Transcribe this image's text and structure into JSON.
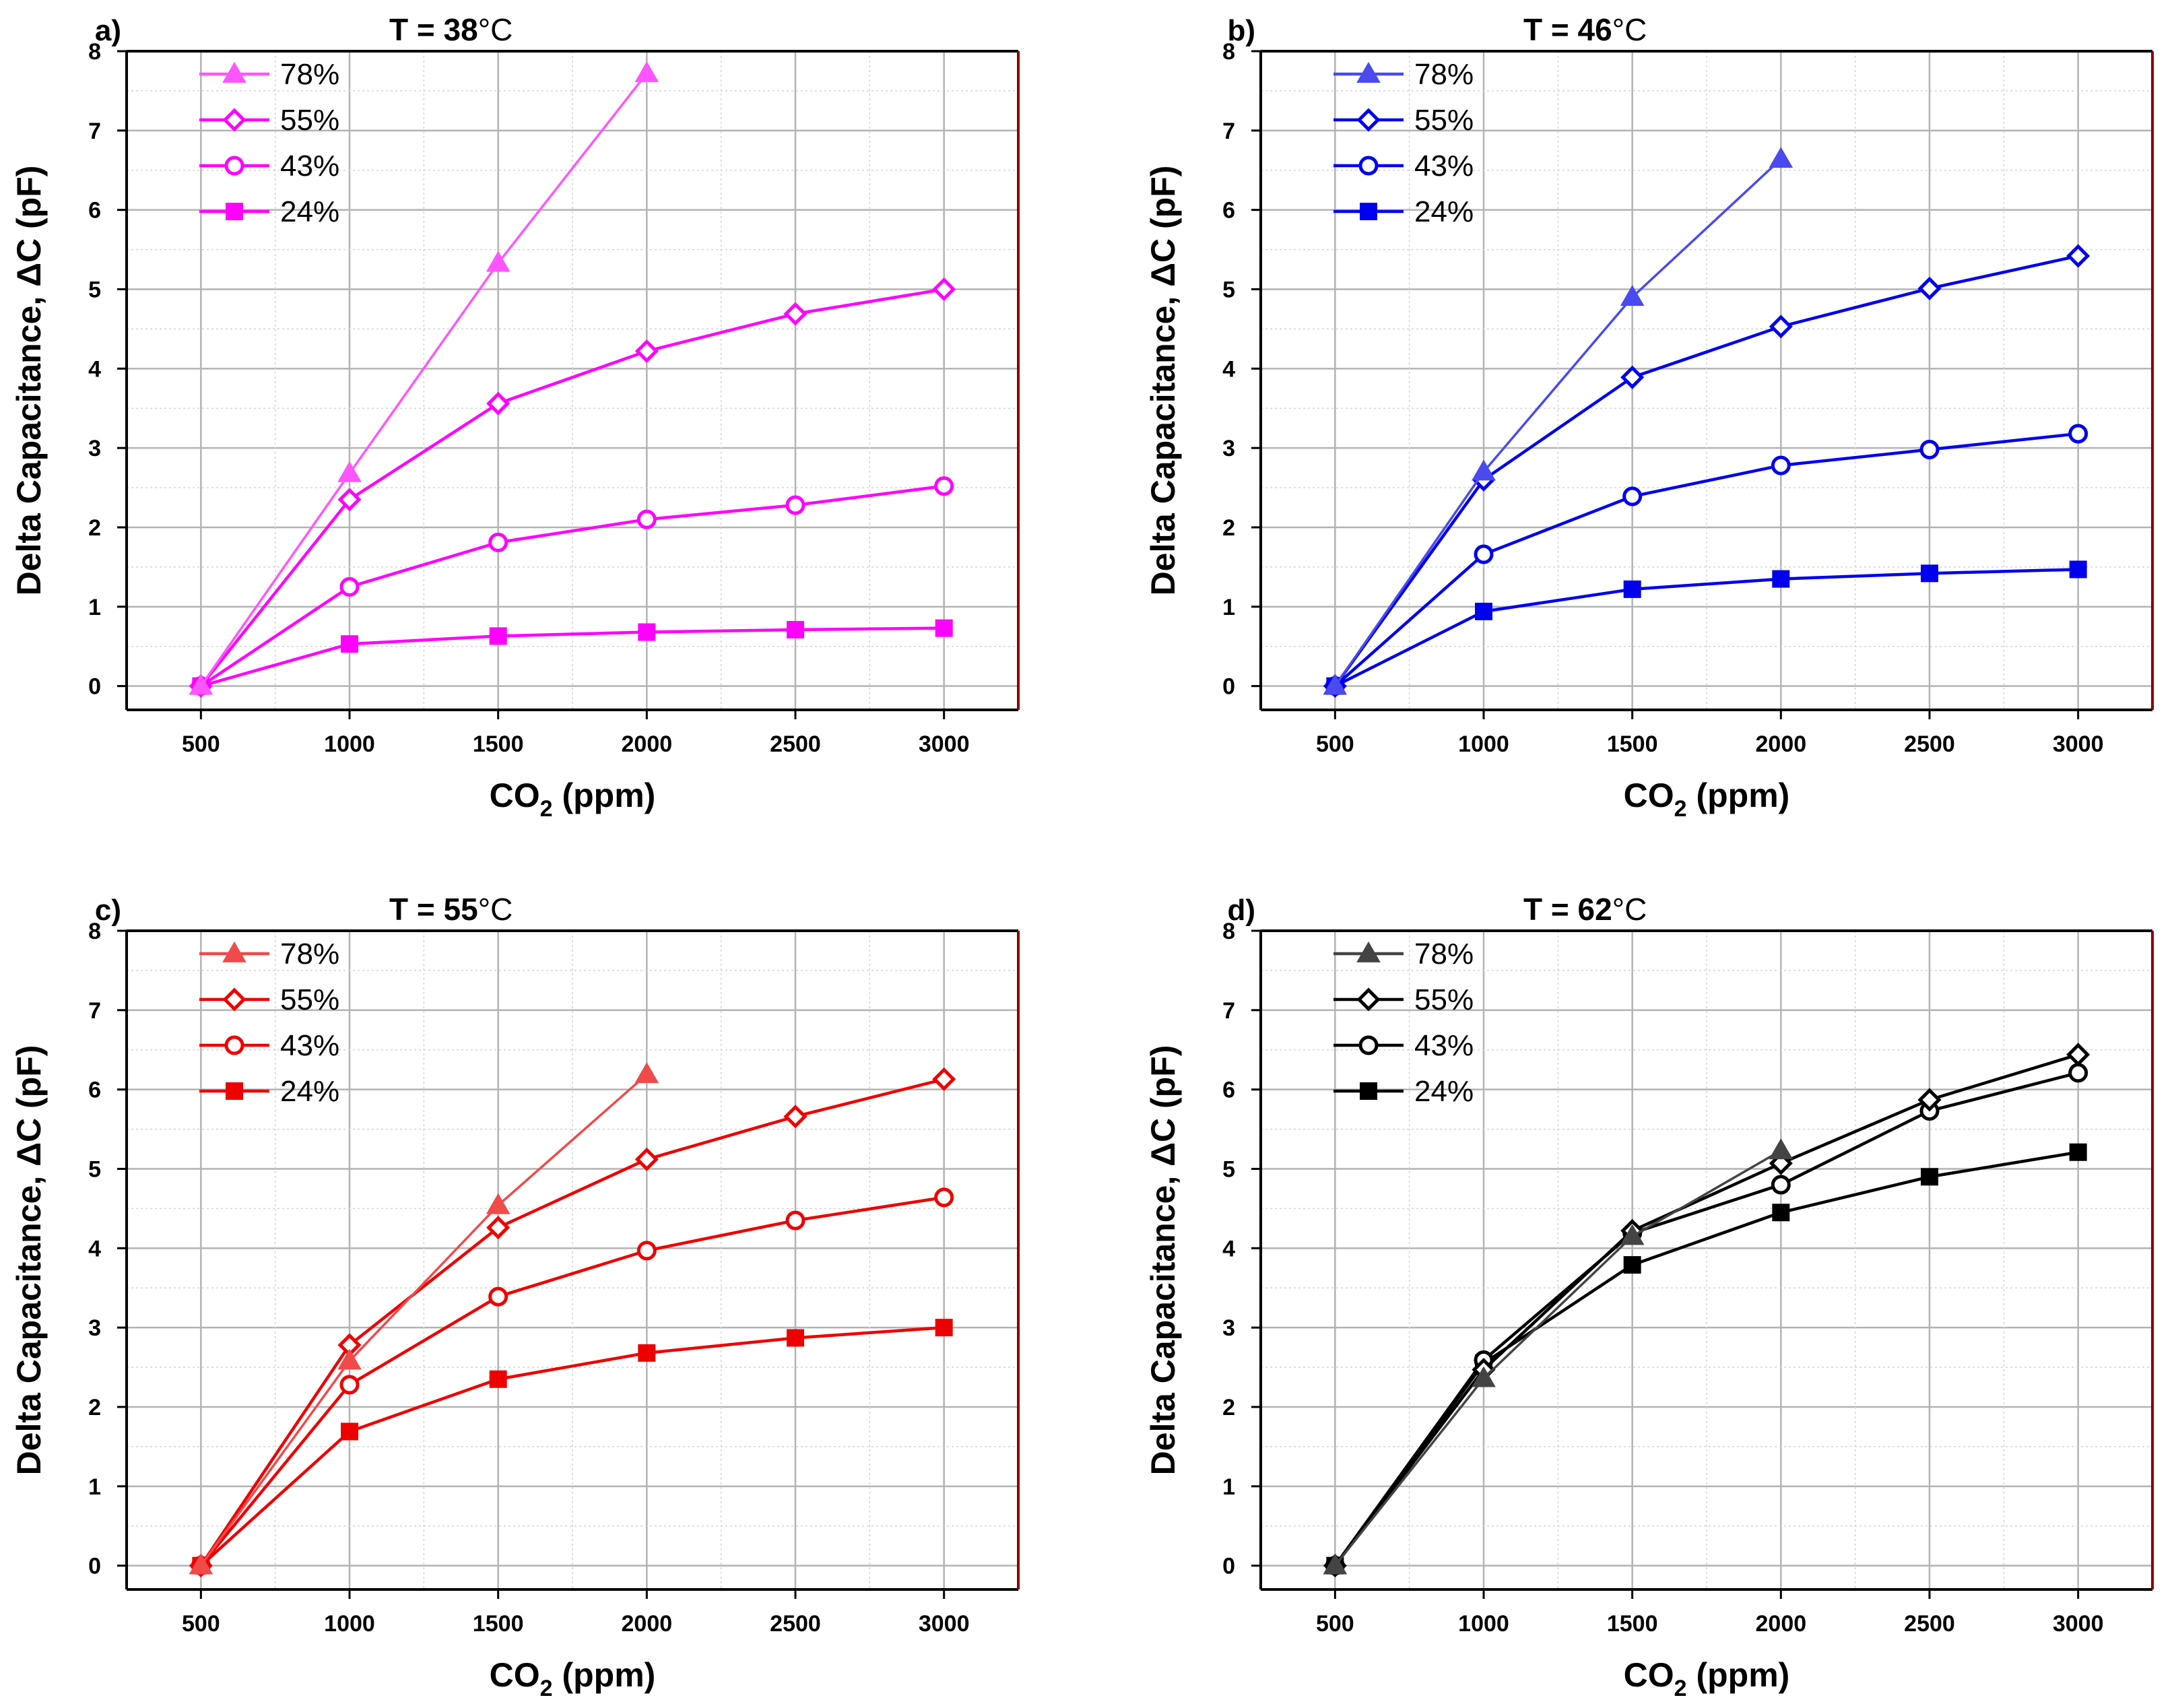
{
  "chart_data": [
    {
      "type": "line",
      "panel_label": "a)",
      "title_prefix": "T = ",
      "title_value": "38",
      "title_unit": "°C",
      "xlabel_main": "CO",
      "xlabel_sub": "2",
      "xlabel_unit": " (ppm)",
      "ylabel": "Delta Capacitance, ΔC (pF)",
      "xlim": [
        250,
        3250
      ],
      "ylim": [
        -0.3,
        8
      ],
      "xticks": [
        500,
        1000,
        1500,
        2000,
        2500,
        3000
      ],
      "yticks": [
        0,
        1,
        2,
        3,
        4,
        5,
        6,
        7,
        8
      ],
      "grid": true,
      "legend_position": "top-left",
      "color": "#ff00ff",
      "color_light": "#ff55ff",
      "series": [
        {
          "name": "78%",
          "marker": "triangle",
          "x": [
            500,
            1000,
            1500,
            2000
          ],
          "values": [
            0,
            2.68,
            5.33,
            7.72
          ]
        },
        {
          "name": "55%",
          "marker": "diamond-open",
          "x": [
            500,
            1000,
            1500,
            2000,
            2500,
            3000
          ],
          "values": [
            0,
            2.35,
            3.56,
            4.22,
            4.69,
            5.0
          ]
        },
        {
          "name": "43%",
          "marker": "circle-open",
          "x": [
            500,
            1000,
            1500,
            2000,
            2500,
            3000
          ],
          "values": [
            0,
            1.25,
            1.81,
            2.1,
            2.28,
            2.52
          ]
        },
        {
          "name": "24%",
          "marker": "square",
          "x": [
            500,
            1000,
            1500,
            2000,
            2500,
            3000
          ],
          "values": [
            0,
            0.53,
            0.63,
            0.68,
            0.71,
            0.73
          ]
        }
      ]
    },
    {
      "type": "line",
      "panel_label": "b)",
      "title_prefix": "T = ",
      "title_value": "46",
      "title_unit": "°C",
      "xlabel_main": "CO",
      "xlabel_sub": "2",
      "xlabel_unit": " (ppm)",
      "ylabel": "Delta Capacitance, ΔC (pF)",
      "xlim": [
        250,
        3250
      ],
      "ylim": [
        -0.3,
        8
      ],
      "xticks": [
        500,
        1000,
        1500,
        2000,
        2500,
        3000
      ],
      "yticks": [
        0,
        1,
        2,
        3,
        4,
        5,
        6,
        7,
        8
      ],
      "grid": true,
      "legend_position": "top-left",
      "color": "#0000ee",
      "color_light": "#4a4aee",
      "series": [
        {
          "name": "78%",
          "marker": "triangle",
          "x": [
            500,
            1000,
            1500,
            2000
          ],
          "values": [
            0,
            2.7,
            4.9,
            6.64
          ]
        },
        {
          "name": "55%",
          "marker": "diamond-open",
          "x": [
            500,
            1000,
            1500,
            2000,
            2500,
            3000
          ],
          "values": [
            0,
            2.6,
            3.89,
            4.53,
            5.01,
            5.42
          ]
        },
        {
          "name": "43%",
          "marker": "circle-open",
          "x": [
            500,
            1000,
            1500,
            2000,
            2500,
            3000
          ],
          "values": [
            0,
            1.66,
            2.39,
            2.78,
            2.98,
            3.18
          ]
        },
        {
          "name": "24%",
          "marker": "square",
          "x": [
            500,
            1000,
            1500,
            2000,
            2500,
            3000
          ],
          "values": [
            0,
            0.94,
            1.22,
            1.35,
            1.42,
            1.47
          ]
        }
      ]
    },
    {
      "type": "line",
      "panel_label": "c)",
      "title_prefix": "T = ",
      "title_value": "55",
      "title_unit": "°C",
      "xlabel_main": "CO",
      "xlabel_sub": "2",
      "xlabel_unit": " (ppm)",
      "ylabel": "Delta Capacitance, ΔC (pF)",
      "xlim": [
        250,
        3250
      ],
      "ylim": [
        -0.3,
        8
      ],
      "xticks": [
        500,
        1000,
        1500,
        2000,
        2500,
        3000
      ],
      "yticks": [
        0,
        1,
        2,
        3,
        4,
        5,
        6,
        7,
        8
      ],
      "grid": true,
      "legend_position": "top-left",
      "color": "#ee0000",
      "color_light": "#f04a4a",
      "series": [
        {
          "name": "78%",
          "marker": "triangle",
          "x": [
            500,
            1000,
            1500,
            2000
          ],
          "values": [
            0,
            2.58,
            4.54,
            6.19
          ]
        },
        {
          "name": "55%",
          "marker": "diamond-open",
          "x": [
            500,
            1000,
            1500,
            2000,
            2500,
            3000
          ],
          "values": [
            0,
            2.78,
            4.26,
            5.12,
            5.66,
            6.13
          ]
        },
        {
          "name": "43%",
          "marker": "circle-open",
          "x": [
            500,
            1000,
            1500,
            2000,
            2500,
            3000
          ],
          "values": [
            0,
            2.28,
            3.39,
            3.97,
            4.35,
            4.64
          ]
        },
        {
          "name": "24%",
          "marker": "square",
          "x": [
            500,
            1000,
            1500,
            2000,
            2500,
            3000
          ],
          "values": [
            0,
            1.69,
            2.35,
            2.68,
            2.87,
            3.0
          ]
        }
      ]
    },
    {
      "type": "line",
      "panel_label": "d)",
      "title_prefix": "T = ",
      "title_value": "62",
      "title_unit": "°C",
      "xlabel_main": "CO",
      "xlabel_sub": "2",
      "xlabel_unit": " (ppm)",
      "ylabel": "Delta Capacitance, ΔC (pF)",
      "xlim": [
        250,
        3250
      ],
      "ylim": [
        -0.3,
        8
      ],
      "xticks": [
        500,
        1000,
        1500,
        2000,
        2500,
        3000
      ],
      "yticks": [
        0,
        1,
        2,
        3,
        4,
        5,
        6,
        7,
        8
      ],
      "grid": true,
      "legend_position": "top-left",
      "color": "#000000",
      "color_light": "#444444",
      "series": [
        {
          "name": "78%",
          "marker": "triangle",
          "x": [
            500,
            1000,
            1500,
            2000
          ],
          "values": [
            0,
            2.36,
            4.15,
            5.23
          ]
        },
        {
          "name": "55%",
          "marker": "diamond-open",
          "x": [
            500,
            1000,
            1500,
            2000,
            2500,
            3000
          ],
          "values": [
            0,
            2.47,
            4.22,
            5.07,
            5.87,
            6.44
          ]
        },
        {
          "name": "43%",
          "marker": "circle-open",
          "x": [
            500,
            1000,
            1500,
            2000,
            2500,
            3000
          ],
          "values": [
            0,
            2.59,
            4.19,
            4.8,
            5.73,
            6.21
          ]
        },
        {
          "name": "24%",
          "marker": "square",
          "x": [
            500,
            1000,
            1500,
            2000,
            2500,
            3000
          ],
          "values": [
            0,
            2.55,
            3.79,
            4.45,
            4.9,
            5.21
          ]
        }
      ]
    }
  ]
}
